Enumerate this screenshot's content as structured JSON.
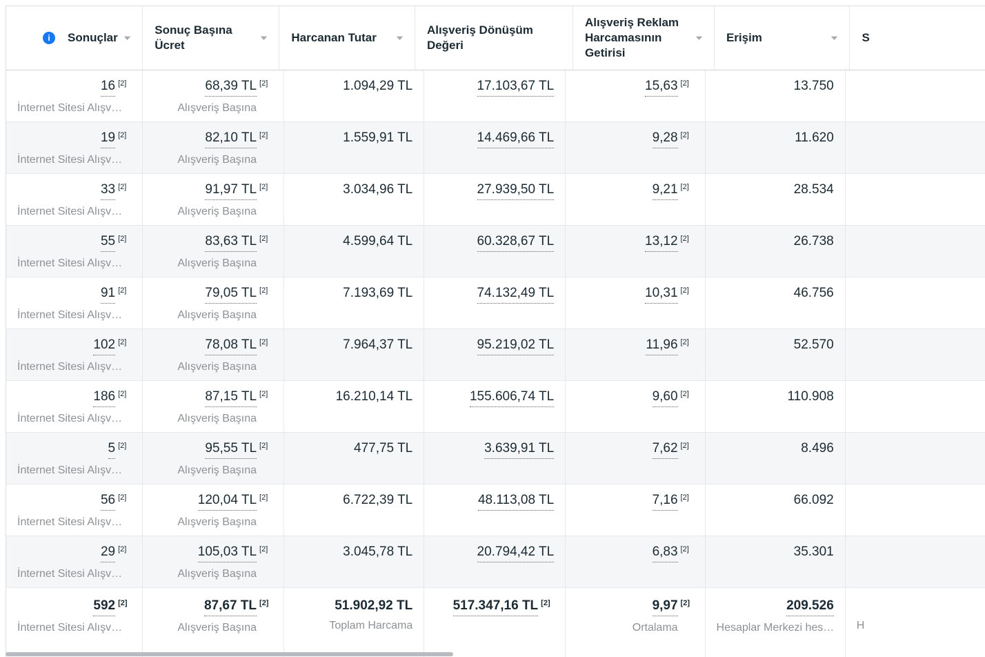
{
  "table": {
    "columns": [
      {
        "key": "results",
        "label": "Sonuçlar",
        "info": true,
        "sortable": true
      },
      {
        "key": "cpr",
        "label": "Sonuç Başına Ücret",
        "sortable": true
      },
      {
        "key": "spent",
        "label": "Harcanan Tutar",
        "sortable": true
      },
      {
        "key": "conv",
        "label": "Alışveriş Dönüşüm Değeri",
        "sortable": false
      },
      {
        "key": "roas",
        "label": "Alışveriş Reklam Harcamasının Getirisi",
        "sortable": true
      },
      {
        "key": "reach",
        "label": "Erişim",
        "sortable": true
      },
      {
        "key": "cut",
        "label": "S",
        "sortable": false
      }
    ],
    "info_icon_glyph": "i",
    "rows": [
      {
        "results": {
          "v": "16",
          "ref": "[2]",
          "sub": "İnternet Sitesi Alışv…"
        },
        "cpr": {
          "v": "68,39 TL",
          "ref": "[2]",
          "sub": "Alışveriş Başına"
        },
        "spent": {
          "v": "1.094,29 TL"
        },
        "conv": {
          "v": "17.103,67 TL"
        },
        "roas": {
          "v": "15,63",
          "ref": "[2]"
        },
        "reach": {
          "v": "13.750"
        }
      },
      {
        "results": {
          "v": "19",
          "ref": "[2]",
          "sub": "İnternet Sitesi Alışv…"
        },
        "cpr": {
          "v": "82,10 TL",
          "ref": "[2]",
          "sub": "Alışveriş Başına"
        },
        "spent": {
          "v": "1.559,91 TL"
        },
        "conv": {
          "v": "14.469,66 TL"
        },
        "roas": {
          "v": "9,28",
          "ref": "[2]"
        },
        "reach": {
          "v": "11.620"
        }
      },
      {
        "results": {
          "v": "33",
          "ref": "[2]",
          "sub": "İnternet Sitesi Alışv…"
        },
        "cpr": {
          "v": "91,97 TL",
          "ref": "[2]",
          "sub": "Alışveriş Başına"
        },
        "spent": {
          "v": "3.034,96 TL"
        },
        "conv": {
          "v": "27.939,50 TL"
        },
        "roas": {
          "v": "9,21",
          "ref": "[2]"
        },
        "reach": {
          "v": "28.534"
        }
      },
      {
        "results": {
          "v": "55",
          "ref": "[2]",
          "sub": "İnternet Sitesi Alışv…"
        },
        "cpr": {
          "v": "83,63 TL",
          "ref": "[2]",
          "sub": "Alışveriş Başına"
        },
        "spent": {
          "v": "4.599,64 TL"
        },
        "conv": {
          "v": "60.328,67 TL"
        },
        "roas": {
          "v": "13,12",
          "ref": "[2]"
        },
        "reach": {
          "v": "26.738"
        }
      },
      {
        "results": {
          "v": "91",
          "ref": "[2]",
          "sub": "İnternet Sitesi Alışv…"
        },
        "cpr": {
          "v": "79,05 TL",
          "ref": "[2]",
          "sub": "Alışveriş Başına"
        },
        "spent": {
          "v": "7.193,69 TL"
        },
        "conv": {
          "v": "74.132,49 TL"
        },
        "roas": {
          "v": "10,31",
          "ref": "[2]"
        },
        "reach": {
          "v": "46.756"
        }
      },
      {
        "results": {
          "v": "102",
          "ref": "[2]",
          "sub": "İnternet Sitesi Alışv…"
        },
        "cpr": {
          "v": "78,08 TL",
          "ref": "[2]",
          "sub": "Alışveriş Başına"
        },
        "spent": {
          "v": "7.964,37 TL"
        },
        "conv": {
          "v": "95.219,02 TL"
        },
        "roas": {
          "v": "11,96",
          "ref": "[2]"
        },
        "reach": {
          "v": "52.570"
        }
      },
      {
        "results": {
          "v": "186",
          "ref": "[2]",
          "sub": "İnternet Sitesi Alışv…"
        },
        "cpr": {
          "v": "87,15 TL",
          "ref": "[2]",
          "sub": "Alışveriş Başına"
        },
        "spent": {
          "v": "16.210,14 TL"
        },
        "conv": {
          "v": "155.606,74 TL"
        },
        "roas": {
          "v": "9,60",
          "ref": "[2]"
        },
        "reach": {
          "v": "110.908"
        }
      },
      {
        "results": {
          "v": "5",
          "ref": "[2]",
          "sub": "İnternet Sitesi Alışv…"
        },
        "cpr": {
          "v": "95,55 TL",
          "ref": "[2]",
          "sub": "Alışveriş Başına"
        },
        "spent": {
          "v": "477,75 TL"
        },
        "conv": {
          "v": "3.639,91 TL"
        },
        "roas": {
          "v": "7,62",
          "ref": "[2]"
        },
        "reach": {
          "v": "8.496"
        }
      },
      {
        "results": {
          "v": "56",
          "ref": "[2]",
          "sub": "İnternet Sitesi Alışv…"
        },
        "cpr": {
          "v": "120,04 TL",
          "ref": "[2]",
          "sub": "Alışveriş Başına"
        },
        "spent": {
          "v": "6.722,39 TL"
        },
        "conv": {
          "v": "48.113,08 TL"
        },
        "roas": {
          "v": "7,16",
          "ref": "[2]"
        },
        "reach": {
          "v": "66.092"
        }
      },
      {
        "results": {
          "v": "29",
          "ref": "[2]",
          "sub": "İnternet Sitesi Alışv…"
        },
        "cpr": {
          "v": "105,03 TL",
          "ref": "[2]",
          "sub": "Alışveriş Başına"
        },
        "spent": {
          "v": "3.045,78 TL"
        },
        "conv": {
          "v": "20.794,42 TL"
        },
        "roas": {
          "v": "6,83",
          "ref": "[2]"
        },
        "reach": {
          "v": "35.301"
        }
      }
    ],
    "totals": {
      "results": {
        "v": "592",
        "ref": "[2]",
        "sub": "İnternet Sitesi Alışv…"
      },
      "cpr": {
        "v": "87,67 TL",
        "ref": "[2]",
        "sub": "Alışveriş Başına"
      },
      "spent": {
        "v": "51.902,92 TL",
        "sub": "Toplam Harcama"
      },
      "conv": {
        "v": "517.347,16 TL",
        "ref": "[2]"
      },
      "roas": {
        "v": "9,97",
        "ref": "[2]",
        "sub": "Ortalama"
      },
      "reach": {
        "v": "209.526",
        "sub": "Hesaplar Merkezi hes…"
      },
      "cut": {
        "sub": "H"
      }
    }
  },
  "colors": {
    "accent_blue": "#1877f2",
    "text_dark": "#1c2b33",
    "text_gray": "#8d9196",
    "row_alt_bg": "#f5f6f7",
    "border": "#e6e8ea",
    "scrollbar": "#b8bbc0"
  }
}
